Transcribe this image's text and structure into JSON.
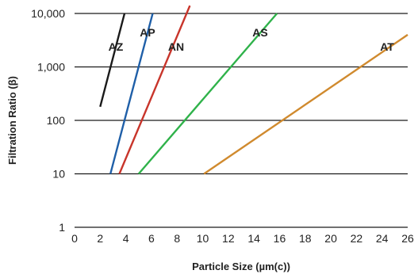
{
  "chart_data": {
    "type": "line",
    "title": "",
    "xlabel": "Particle Size (µm(c))",
    "ylabel": "Filtration Ratio (β)",
    "xlim": [
      0,
      26
    ],
    "ylim": [
      1,
      10000
    ],
    "yscale": "log",
    "grid": "horizontal",
    "x_ticks": [
      "0",
      "2",
      "4",
      "6",
      "8",
      "10",
      "12",
      "14",
      "16",
      "18",
      "20",
      "22",
      "24",
      "26"
    ],
    "y_ticks": [
      "1",
      "10",
      "100",
      "1,000",
      "10,000"
    ],
    "series": [
      {
        "name": "AZ",
        "color": "#1a1a1a",
        "x": [
          2.0,
          3.9
        ],
        "y": [
          180,
          10000
        ]
      },
      {
        "name": "AP",
        "color": "#1f5fa8",
        "x": [
          2.8,
          6.1
        ],
        "y": [
          10,
          10000
        ]
      },
      {
        "name": "AN",
        "color": "#c8352b",
        "x": [
          3.5,
          9.0
        ],
        "y": [
          10,
          14000
        ]
      },
      {
        "name": "AS",
        "color": "#2fb24a",
        "x": [
          5.0,
          15.8
        ],
        "y": [
          10,
          10000
        ]
      },
      {
        "name": "AT",
        "color": "#d08a2e",
        "x": [
          10.1,
          26.0
        ],
        "y": [
          10,
          4000
        ]
      }
    ]
  }
}
